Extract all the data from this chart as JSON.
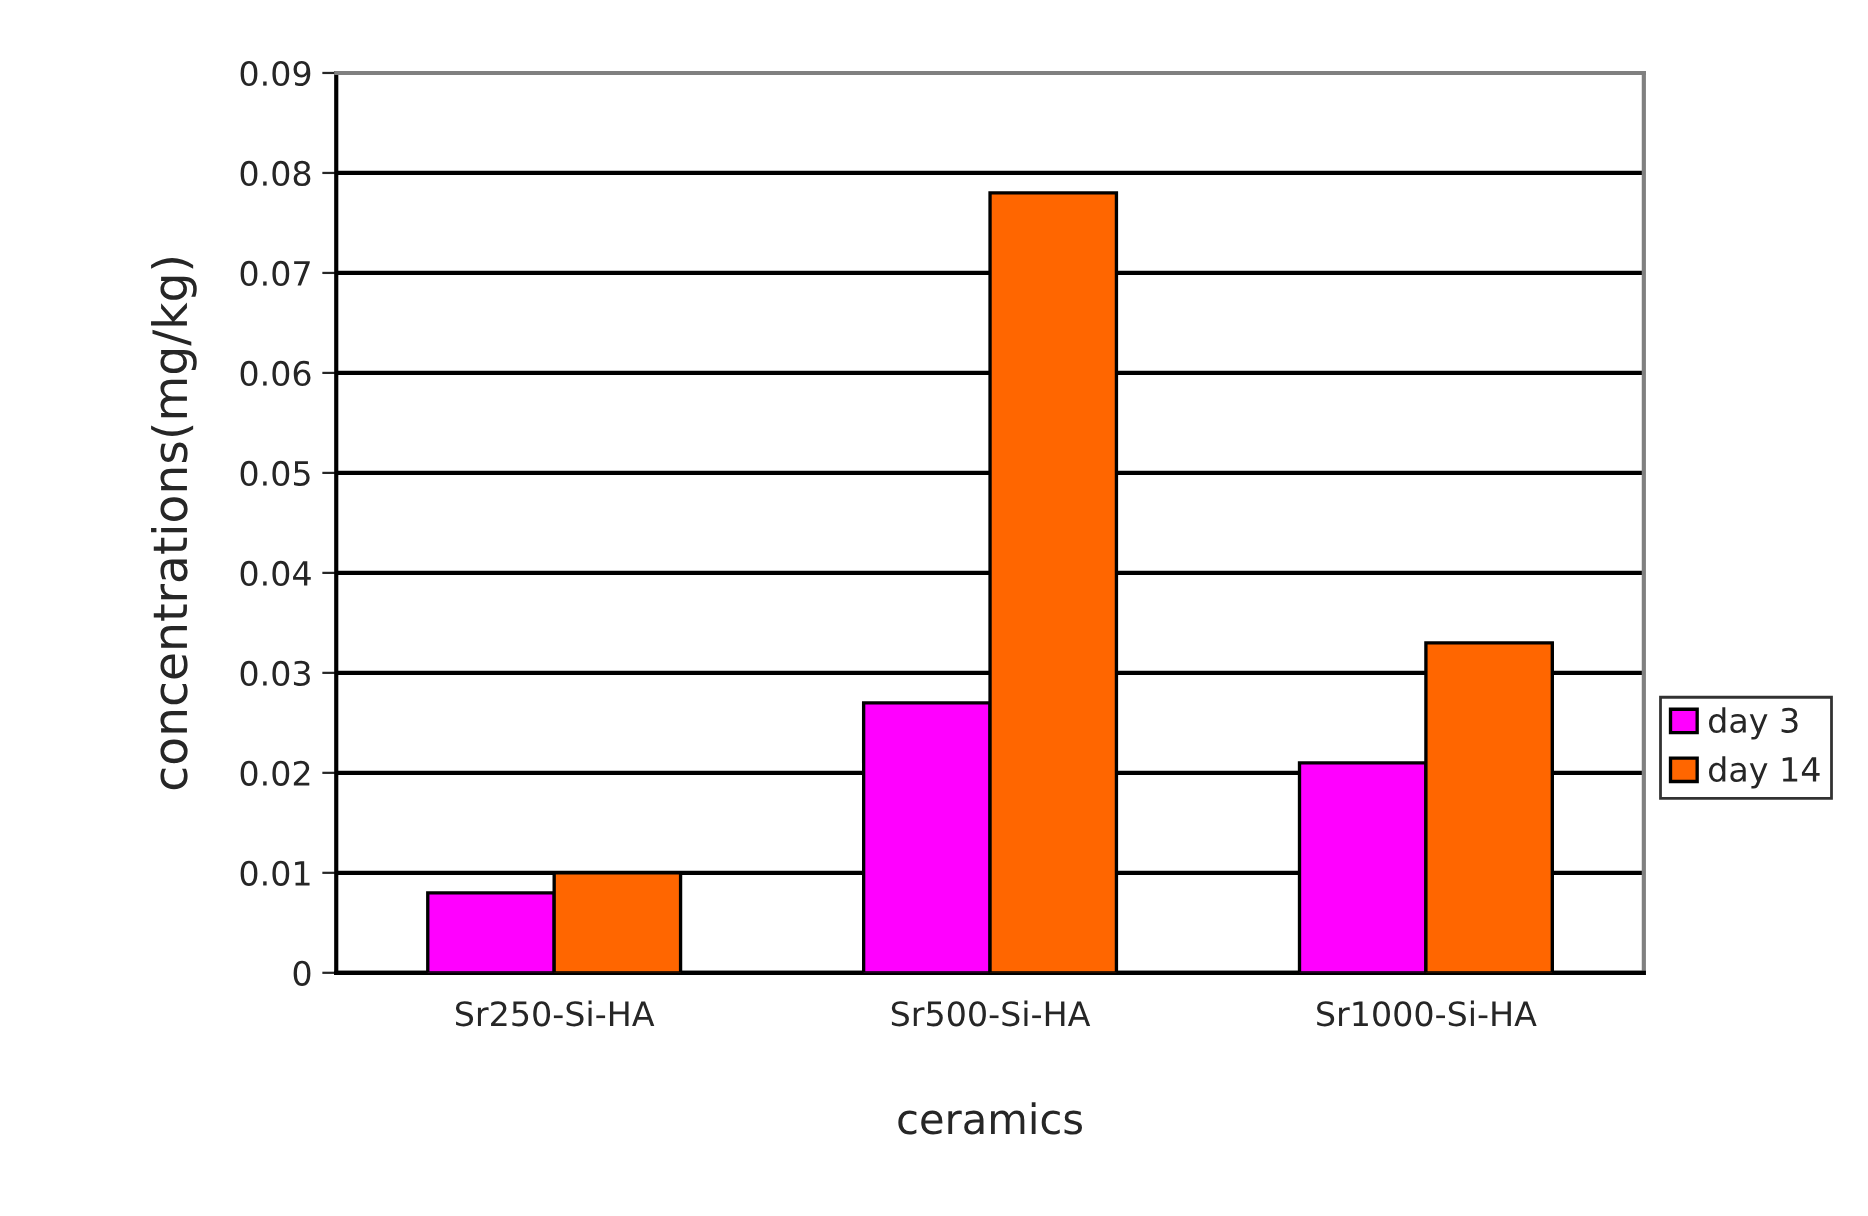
{
  "chart_data": {
    "type": "bar",
    "xlabel": "ceramics",
    "ylabel": "concentrations(mg/kg)",
    "categories": [
      "Sr250-Si-HA",
      "Sr500-Si-HA",
      "Sr1000-Si-HA"
    ],
    "series": [
      {
        "name": "day 3",
        "color": "#ff00ff",
        "values": [
          0.008,
          0.027,
          0.021
        ]
      },
      {
        "name": "day 14",
        "color": "#ff6600",
        "values": [
          0.01,
          0.078,
          0.033
        ]
      }
    ],
    "ylim": [
      0,
      0.09
    ],
    "yticks": [
      0,
      0.01,
      0.02,
      0.03,
      0.04,
      0.05,
      0.06,
      0.07,
      0.08,
      0.09
    ],
    "grid": "y",
    "legend": "right"
  }
}
